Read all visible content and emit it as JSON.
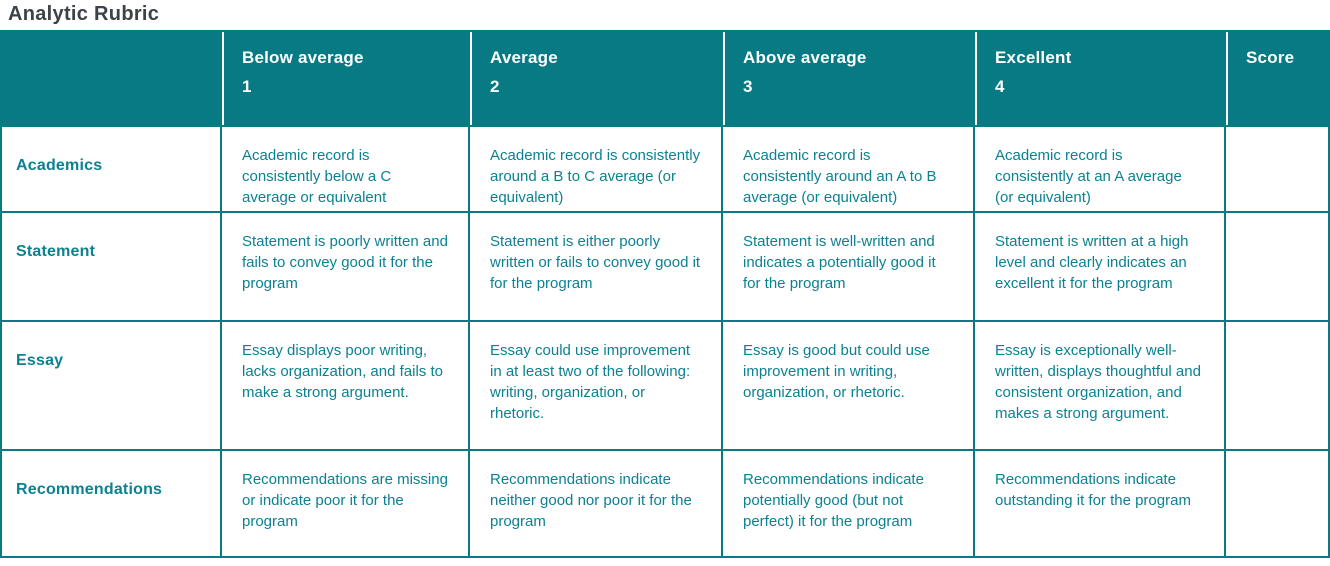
{
  "title": "Analytic Rubric",
  "colors": {
    "title_text": "#3d4247",
    "header_bg": "#077a84",
    "header_text": "#ffffff",
    "body_text": "#0c8191",
    "border": "#077a84"
  },
  "table": {
    "columns": [
      {
        "label": "",
        "sublabel": ""
      },
      {
        "label": "Below average",
        "sublabel": "1"
      },
      {
        "label": "Average",
        "sublabel": "2"
      },
      {
        "label": "Above average",
        "sublabel": "3"
      },
      {
        "label": "Excellent",
        "sublabel": "4"
      },
      {
        "label": "Score",
        "sublabel": ""
      }
    ],
    "rows": [
      {
        "criterion": "Academics",
        "cells": [
          "Academic record is consistently below a C average or equivalent",
          "Academic record is consistently around a B to C average (or equivalent)",
          "Academic record is consistently around an A to B average (or equivalent)",
          "Academic record is consistently at an A average (or equivalent)"
        ],
        "score": ""
      },
      {
        "criterion": "Statement",
        "cells": [
          "Statement is poorly written and fails to convey good it for the program",
          "Statement is either poorly written or fails to convey good it for the program",
          "Statement is well-written and indicates a potentially good it for the program",
          "Statement is written at a high level and clearly indicates an excellent it for the program"
        ],
        "score": ""
      },
      {
        "criterion": "Essay",
        "cells": [
          "Essay displays poor writing, lacks organization, and fails to make a strong argument.",
          "Essay could use improvement in at least two of the following: writing, organization, or rhetoric.",
          "Essay is good but could use improvement in writing, organization, or rhetoric.",
          "Essay is exceptionally well-written, displays thoughtful and consistent organization, and makes a strong argument."
        ],
        "score": ""
      },
      {
        "criterion": "Recommendations",
        "cells": [
          "Recommendations are missing or indicate poor it for the program",
          "Recommendations indicate neither good nor poor it for the program",
          "Recommendations indicate potentially good (but not perfect) it for the program",
          "Recommendations indicate outstanding it for the program"
        ],
        "score": ""
      }
    ]
  }
}
